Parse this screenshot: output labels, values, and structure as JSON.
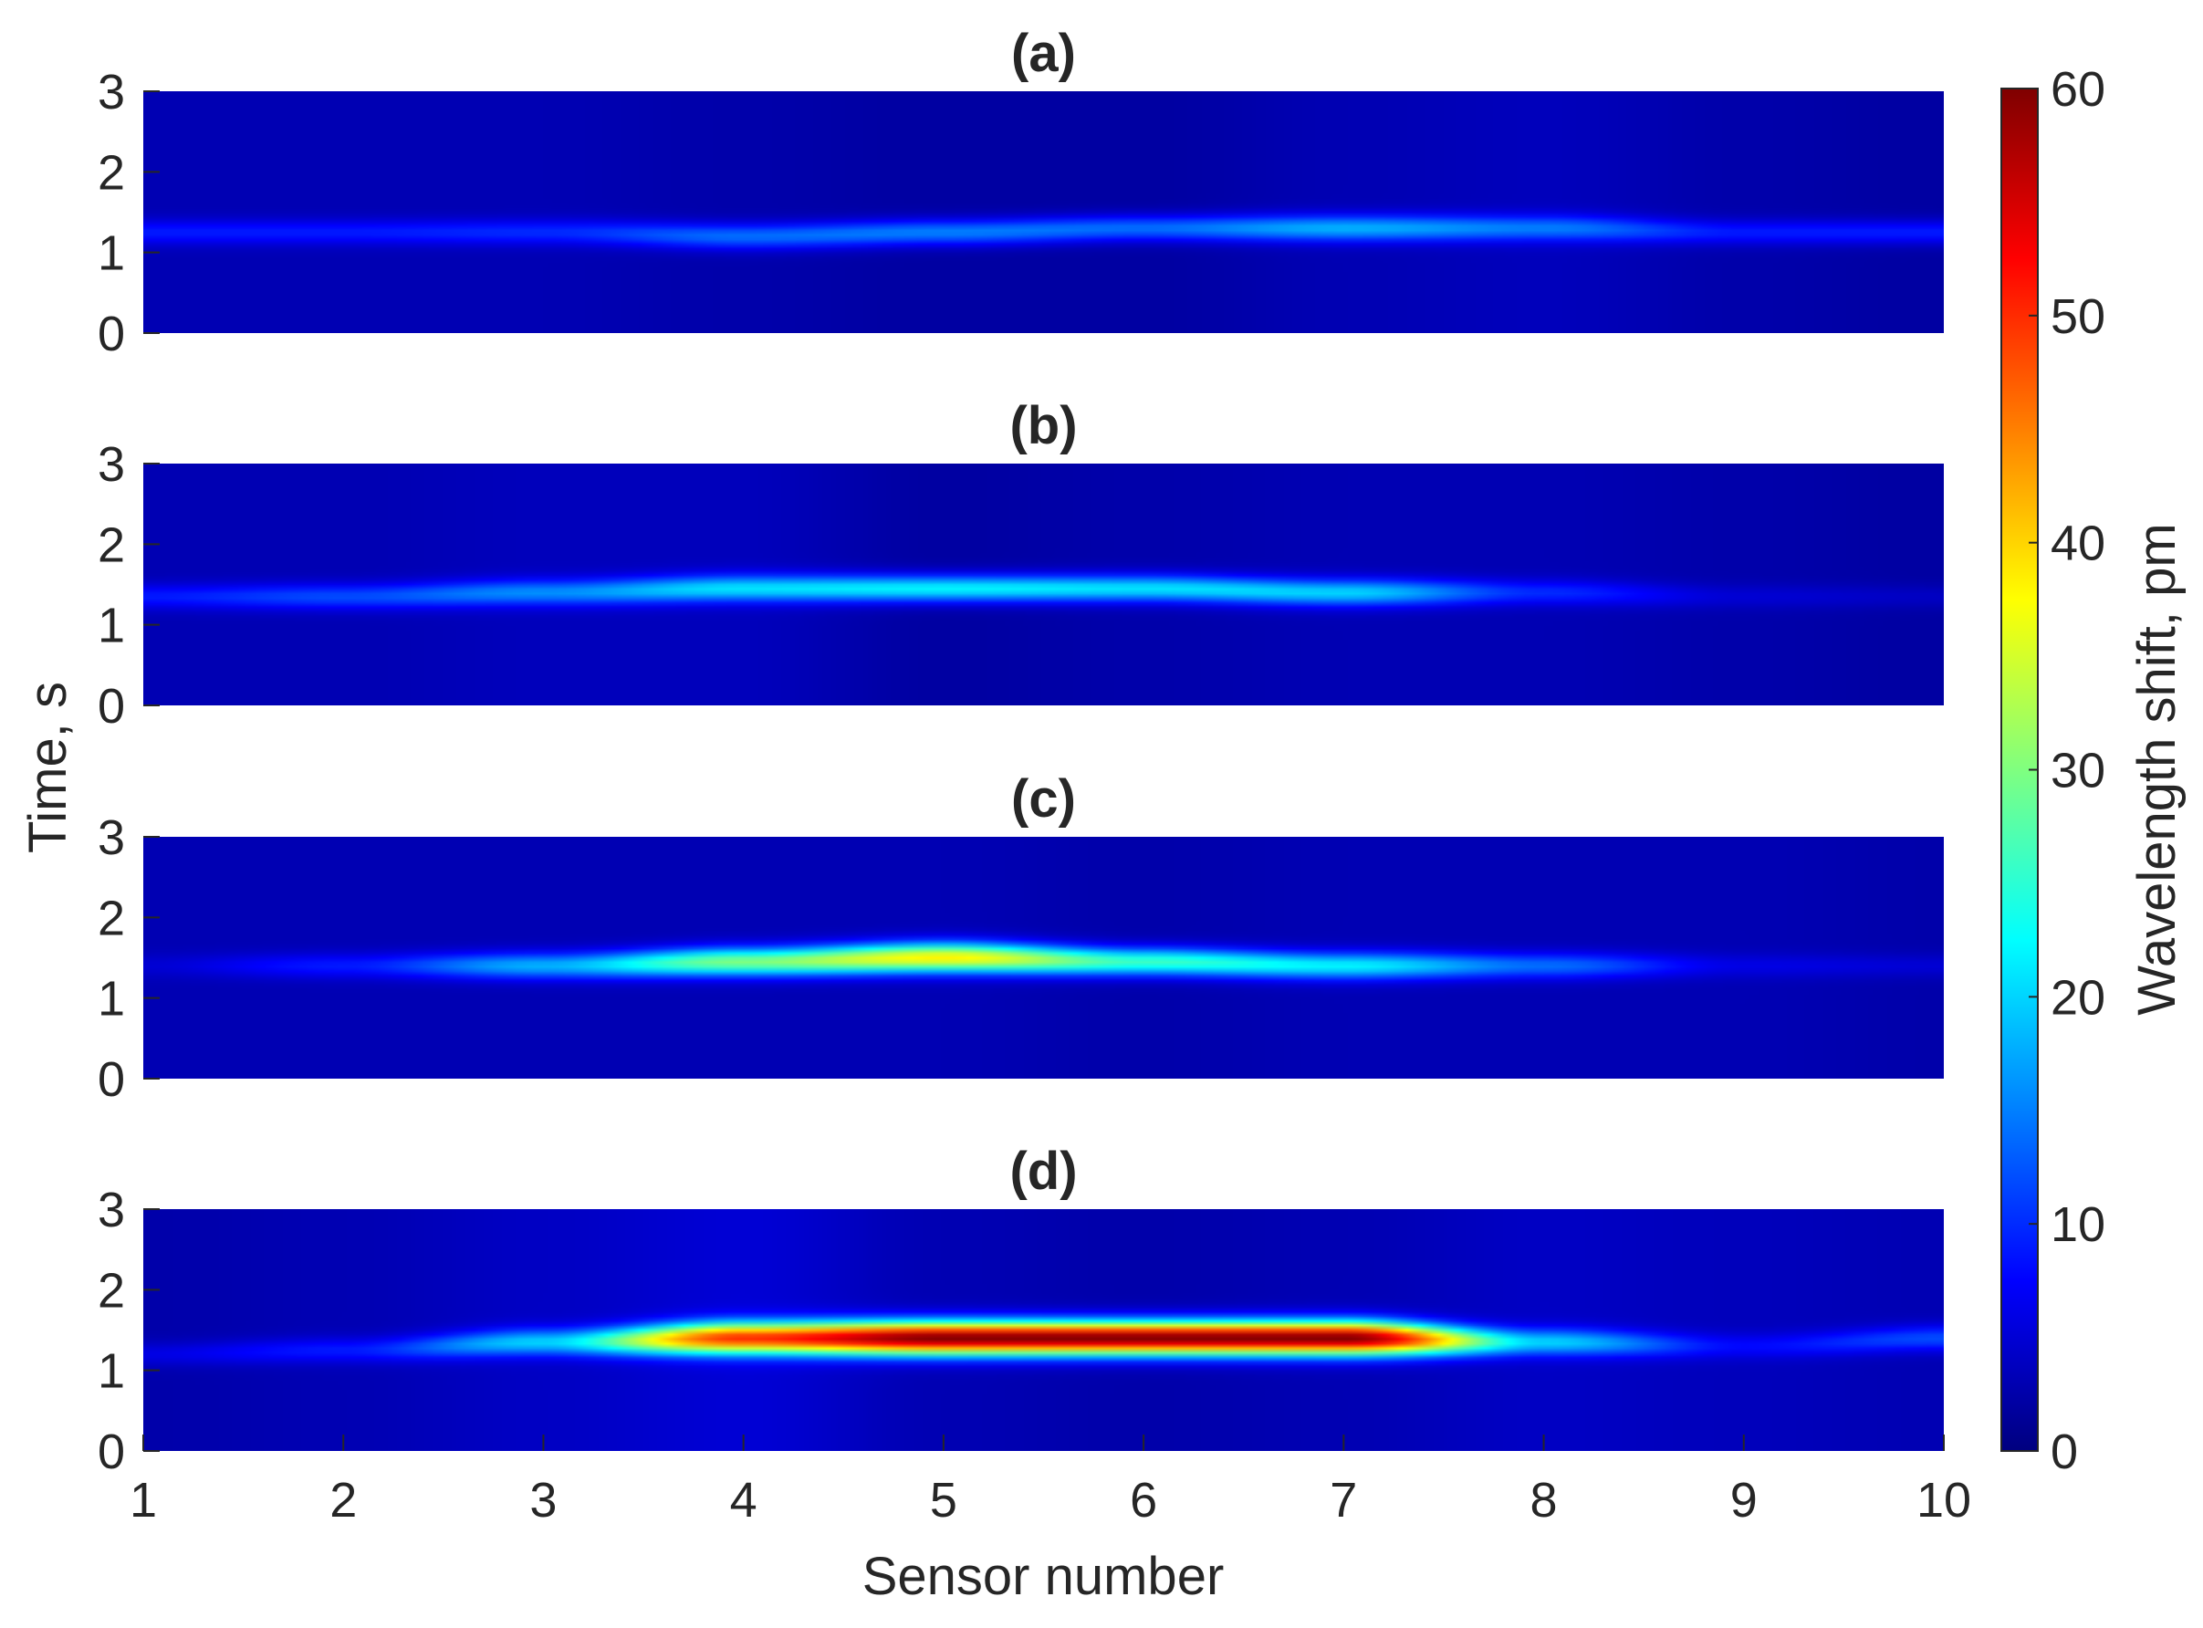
{
  "chart_data": {
    "type": "heatmap",
    "layout": "4 stacked panels sharing x-axis and one vertical colorbar on the right",
    "xlabel": "Sensor number",
    "ylabel": "Time, s",
    "xlim": [
      1,
      10
    ],
    "xticks": [
      1,
      2,
      3,
      4,
      5,
      6,
      7,
      8,
      9,
      10
    ],
    "ylim": [
      0,
      3
    ],
    "yticks": [
      0,
      1,
      2,
      3
    ],
    "colormap": "jet",
    "colorbar": {
      "label": "Wavelength shift, pm",
      "range": [
        0,
        60
      ],
      "ticks": [
        0,
        10,
        20,
        30,
        40,
        50,
        60
      ]
    },
    "grid": false,
    "x_sensors": [
      1,
      2,
      3,
      4,
      5,
      6,
      7,
      8,
      9,
      10
    ],
    "panels": [
      {
        "title": "(a)",
        "peak_time_s": [
          1.25,
          1.25,
          1.25,
          1.2,
          1.25,
          1.3,
          1.3,
          1.3,
          1.25,
          1.25
        ],
        "peak_value_pm": [
          9,
          9,
          10,
          14,
          15,
          14,
          18,
          15,
          9,
          9
        ],
        "background_pm": [
          3,
          3,
          3,
          2.5,
          2,
          2,
          3,
          3.5,
          2.5,
          2
        ]
      },
      {
        "title": "(b)",
        "peak_time_s": [
          1.35,
          1.35,
          1.4,
          1.45,
          1.45,
          1.45,
          1.4,
          1.4,
          1.35,
          1.35
        ],
        "peak_value_pm": [
          9,
          12,
          16,
          21,
          22,
          21,
          20,
          10,
          5,
          4
        ],
        "background_pm": [
          3,
          3,
          3.5,
          3.5,
          2,
          2.5,
          3,
          3,
          2.5,
          2
        ]
      },
      {
        "title": "(c)",
        "peak_time_s": [
          1.4,
          1.4,
          1.4,
          1.45,
          1.5,
          1.45,
          1.4,
          1.4,
          1.4,
          1.4
        ],
        "peak_value_pm": [
          5,
          9,
          18,
          30,
          38,
          26,
          22,
          14,
          6,
          5
        ],
        "background_pm": [
          3,
          3,
          3,
          3,
          3,
          2.5,
          3,
          3,
          3,
          2.5
        ]
      },
      {
        "title": "(d)",
        "peak_time_s": [
          1.2,
          1.25,
          1.35,
          1.4,
          1.4,
          1.4,
          1.4,
          1.35,
          1.3,
          1.4
        ],
        "peak_value_pm": [
          6,
          9,
          20,
          50,
          60,
          60,
          60,
          20,
          8,
          12
        ],
        "background_pm": [
          2.5,
          3,
          4,
          5,
          3,
          2.5,
          3,
          4,
          3.5,
          3
        ]
      }
    ]
  }
}
